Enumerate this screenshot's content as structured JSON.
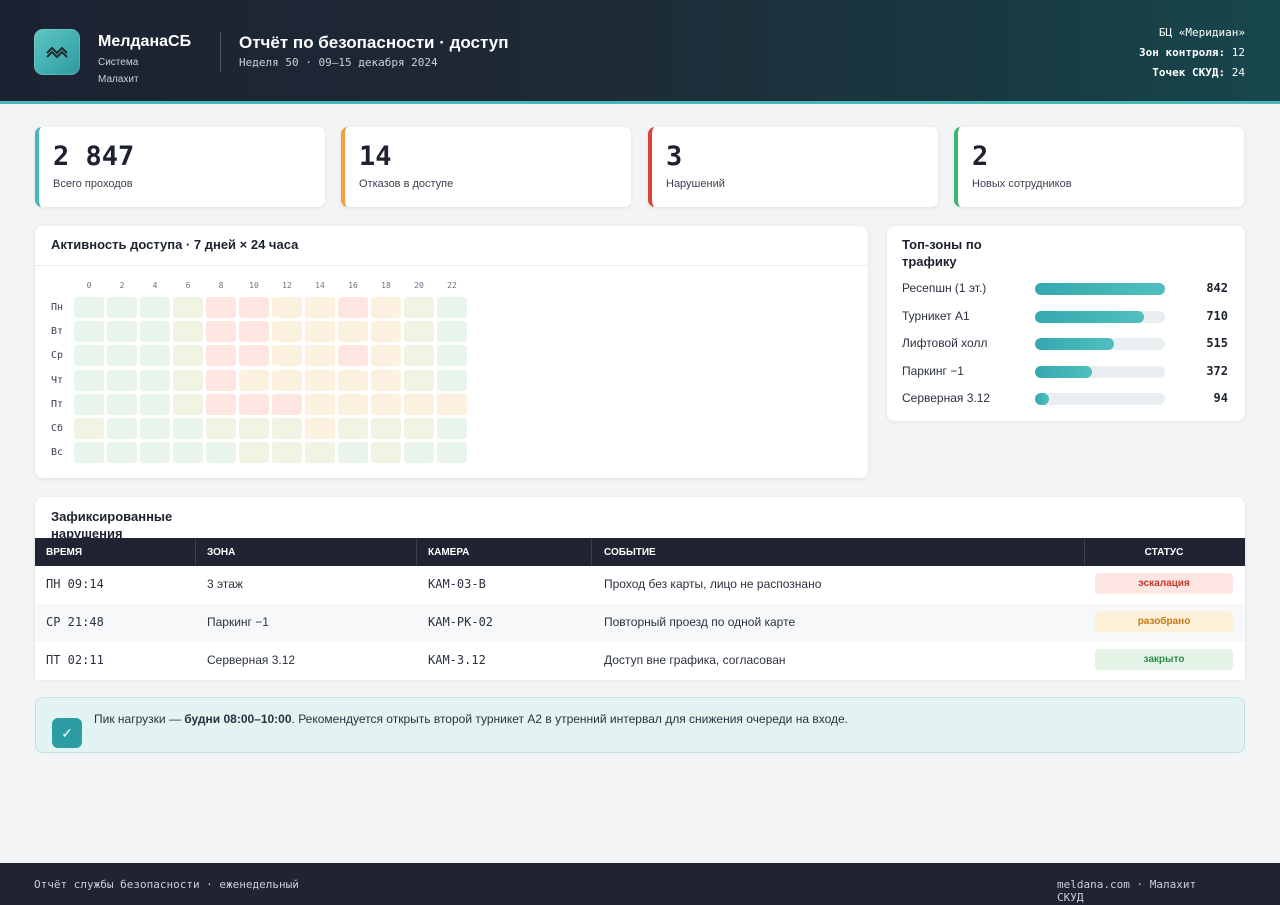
{
  "header": {
    "brand_name": "МелданаСБ",
    "brand_sub": "Система Малахит",
    "title": "Отчёт по безопасности · доступ",
    "subtitle": "Неделя 50 · 09–15 декабря 2024",
    "location": "БЦ «Меридиан»",
    "zones_label": "Зон контроля:",
    "zones_value": "12",
    "points_label": "Точек СКУД:",
    "points_value": "24"
  },
  "kpis": [
    {
      "value": "2 847",
      "label": "Всего проходов",
      "color": "#49b6b7"
    },
    {
      "value": "14",
      "label": "Отказов в доступе",
      "color": "#f0a13a"
    },
    {
      "value": "3",
      "label": "Нарушений",
      "color": "#d9453c"
    },
    {
      "value": "2",
      "label": "Новых сотрудников",
      "color": "#3db36b"
    }
  ],
  "heatmap": {
    "title": "Активность доступа · 7 дней × 24 часа",
    "hours": [
      "0",
      "2",
      "4",
      "6",
      "8",
      "10",
      "12",
      "14",
      "16",
      "18",
      "20",
      "22"
    ],
    "days": [
      "Пн",
      "Вт",
      "Ср",
      "Чт",
      "Пт",
      "Сб",
      "Вс"
    ],
    "palette": {
      "low": "#e9f5ea",
      "mid": "#fbf1de",
      "high": "#fde6e2",
      "calm": "#f1f4e3"
    },
    "levels": [
      [
        "low",
        "low",
        "low",
        "calm",
        "high",
        "high",
        "mid",
        "mid",
        "high",
        "mid",
        "calm",
        "low"
      ],
      [
        "low",
        "low",
        "low",
        "calm",
        "high",
        "high",
        "mid",
        "mid",
        "mid",
        "mid",
        "calm",
        "low"
      ],
      [
        "low",
        "low",
        "low",
        "calm",
        "high",
        "high",
        "mid",
        "mid",
        "high",
        "mid",
        "calm",
        "low"
      ],
      [
        "low",
        "low",
        "low",
        "calm",
        "high",
        "mid",
        "mid",
        "mid",
        "mid",
        "mid",
        "calm",
        "low"
      ],
      [
        "low",
        "low",
        "low",
        "calm",
        "high",
        "high",
        "high",
        "mid",
        "mid",
        "mid",
        "mid",
        "mid"
      ],
      [
        "calm",
        "low",
        "low",
        "low",
        "calm",
        "calm",
        "calm",
        "mid",
        "calm",
        "calm",
        "calm",
        "low"
      ],
      [
        "low",
        "low",
        "low",
        "low",
        "low",
        "calm",
        "calm",
        "calm",
        "low",
        "calm",
        "low",
        "low"
      ]
    ]
  },
  "top_zones": {
    "title": "Топ-зоны по трафику",
    "items": [
      {
        "name": "Ресепшн (1 эт.)",
        "value": "842",
        "fraction": 1.0
      },
      {
        "name": "Турникет А1",
        "value": "710",
        "fraction": 0.84
      },
      {
        "name": "Лифтовой холл",
        "value": "515",
        "fraction": 0.61
      },
      {
        "name": "Паркинг −1",
        "value": "372",
        "fraction": 0.44
      },
      {
        "name": "Серверная 3.12",
        "value": "94",
        "fraction": 0.11
      }
    ]
  },
  "violations": {
    "title": "Зафиксированные нарушения",
    "columns": [
      "ВРЕМЯ",
      "ЗОНА",
      "КАМЕРА",
      "СОБЫТИЕ",
      "СТАТУС"
    ],
    "rows": [
      {
        "time": "ПН 09:14",
        "zone": "3 этаж",
        "camera": "КАМ-03-В",
        "event": "Проход без карты, лицо не распознано",
        "status": "эскалация",
        "status_bg": "#fde6e2",
        "status_color": "#c0392b"
      },
      {
        "time": "СР 21:48",
        "zone": "Паркинг −1",
        "camera": "КАМ-РК-02",
        "event": "Повторный проезд по одной карте",
        "status": "разобрано",
        "status_bg": "#fdf0d9",
        "status_color": "#c27c12"
      },
      {
        "time": "ПТ 02:11",
        "zone": "Серверная 3.12",
        "camera": "КАМ-3.12",
        "event": "Доступ вне графика, согласован",
        "status": "закрыто",
        "status_bg": "#e4f4e7",
        "status_color": "#2d8a4a"
      }
    ]
  },
  "note": {
    "icon": "check-icon",
    "prefix": "Пик нагрузки — ",
    "highlight": "будни 08:00–10:00",
    "suffix": ". Рекомендуется открыть второй турникет А2 в утренний интервал для снижения очереди на входе."
  },
  "footer": {
    "left": "Отчёт службы безопасности · еженедельный",
    "right": "meldana.com · Малахит СКУД"
  }
}
